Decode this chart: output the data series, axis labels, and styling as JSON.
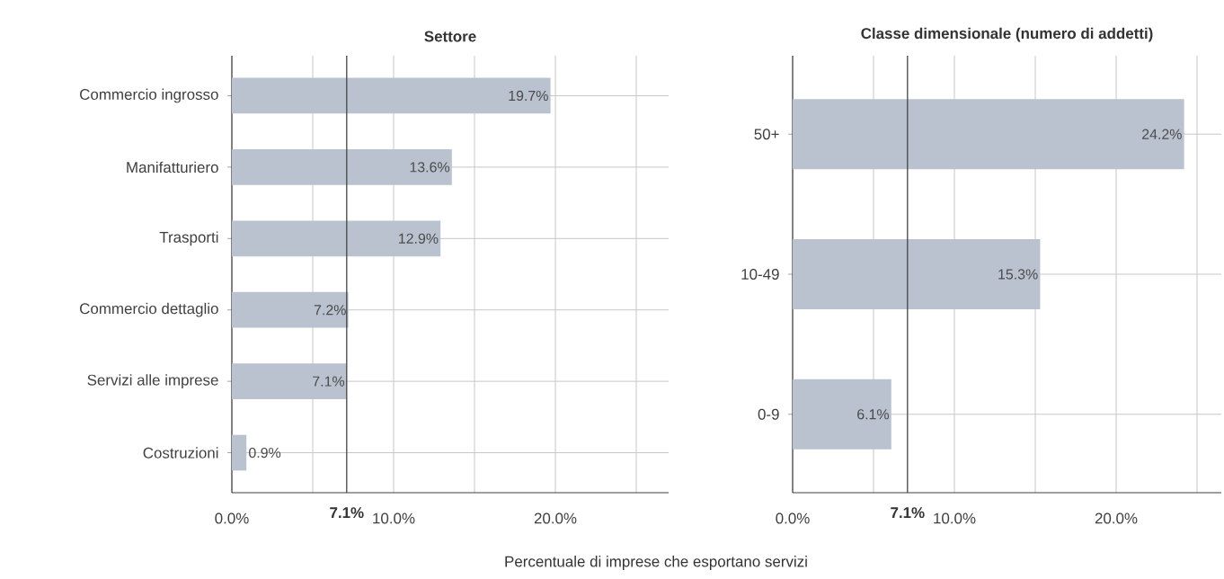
{
  "chart_data": [
    {
      "type": "bar",
      "orientation": "horizontal",
      "title": "Settore",
      "categories": [
        "Commercio ingrosso",
        "Manifatturiero",
        "Trasporti",
        "Commercio dettaglio",
        "Servizi alle imprese",
        "Costruzioni"
      ],
      "values": [
        19.7,
        13.6,
        12.9,
        7.2,
        7.1,
        0.9
      ],
      "value_labels": [
        "19.7%",
        "13.6%",
        "12.9%",
        "7.2%",
        "7.1%",
        "0.9%"
      ],
      "color": "#bac2d0",
      "xlim": [
        0,
        27
      ],
      "xticks": [
        {
          "value": 0,
          "label": "0.0%"
        },
        {
          "value": 5,
          "label": null
        },
        {
          "value": 10,
          "label": "10.0%"
        },
        {
          "value": 15,
          "label": null
        },
        {
          "value": 20,
          "label": "20.0%"
        },
        {
          "value": 25,
          "label": null
        }
      ],
      "grid": true,
      "ref_lines": [
        {
          "axis": "x",
          "value": 7.1,
          "label": "7.1%",
          "color": "#444444"
        }
      ]
    },
    {
      "type": "bar",
      "orientation": "horizontal",
      "title": "Classe dimensionale (numero di addetti)",
      "xlabel": "Percentuale di imprese che esportano servizi",
      "categories": [
        "50+",
        "10-49",
        "0-9"
      ],
      "values": [
        24.2,
        15.3,
        6.1
      ],
      "value_labels": [
        "24.2%",
        "15.3%",
        "6.1%"
      ],
      "color": "#bac2d0",
      "xlim": [
        0,
        26.5
      ],
      "xticks": [
        {
          "value": 0,
          "label": "0.0%"
        },
        {
          "value": 5,
          "label": null
        },
        {
          "value": 10,
          "label": "10.0%"
        },
        {
          "value": 15,
          "label": null
        },
        {
          "value": 20,
          "label": "20.0%"
        },
        {
          "value": 25,
          "label": null
        }
      ],
      "grid": true,
      "ref_lines": [
        {
          "axis": "x",
          "value": 7.1,
          "label": "7.1%",
          "color": "#444444"
        }
      ]
    }
  ]
}
